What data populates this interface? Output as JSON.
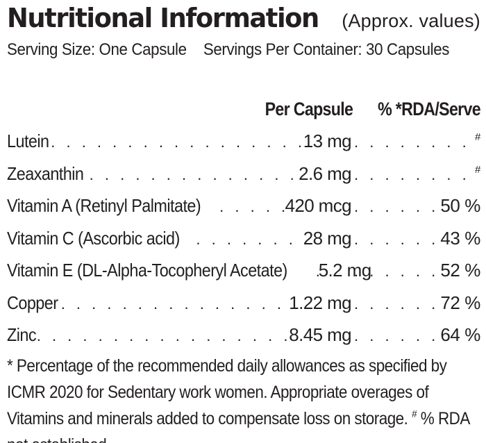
{
  "header": {
    "title": "Nutritional Information",
    "subtitle": "(Approx. values)"
  },
  "serving": {
    "size": "Serving Size: One Capsule",
    "per_container": "Servings Per Container: 30 Capsules"
  },
  "columns": {
    "per_capsule": "Per Capsule",
    "rda": "% *RDA/Serve"
  },
  "nutrients": [
    {
      "name": "Lutein",
      "amount": "13 mg",
      "rda": "#"
    },
    {
      "name": "Zeaxanthin",
      "amount": "2.6 mg",
      "rda": "#"
    },
    {
      "name": "Vitamin A (Retinyl Palmitate)",
      "amount": "420 mcg",
      "rda": "50 %"
    },
    {
      "name": "Vitamin C (Ascorbic acid)",
      "amount": "28 mg",
      "rda": "43 %"
    },
    {
      "name": "Vitamin E (DL-Alpha-Tocopheryl Acetate)",
      "amount": "5.2 mg",
      "rda": "52 %"
    },
    {
      "name": "Copper",
      "amount": "1.22 mg",
      "rda": "72 %"
    },
    {
      "name": "Zinc",
      "amount": "8.45 mg",
      "rda": "64 %"
    }
  ],
  "footnote": {
    "text_before": "* Percentage of the recommended daily allowances as specified by ICMR 2020 for Sedentary work women. Appropriate overages of Vitamins and minerals added to compensate loss on storage. ",
    "marker": "#",
    "text_after": " % RDA not established."
  }
}
